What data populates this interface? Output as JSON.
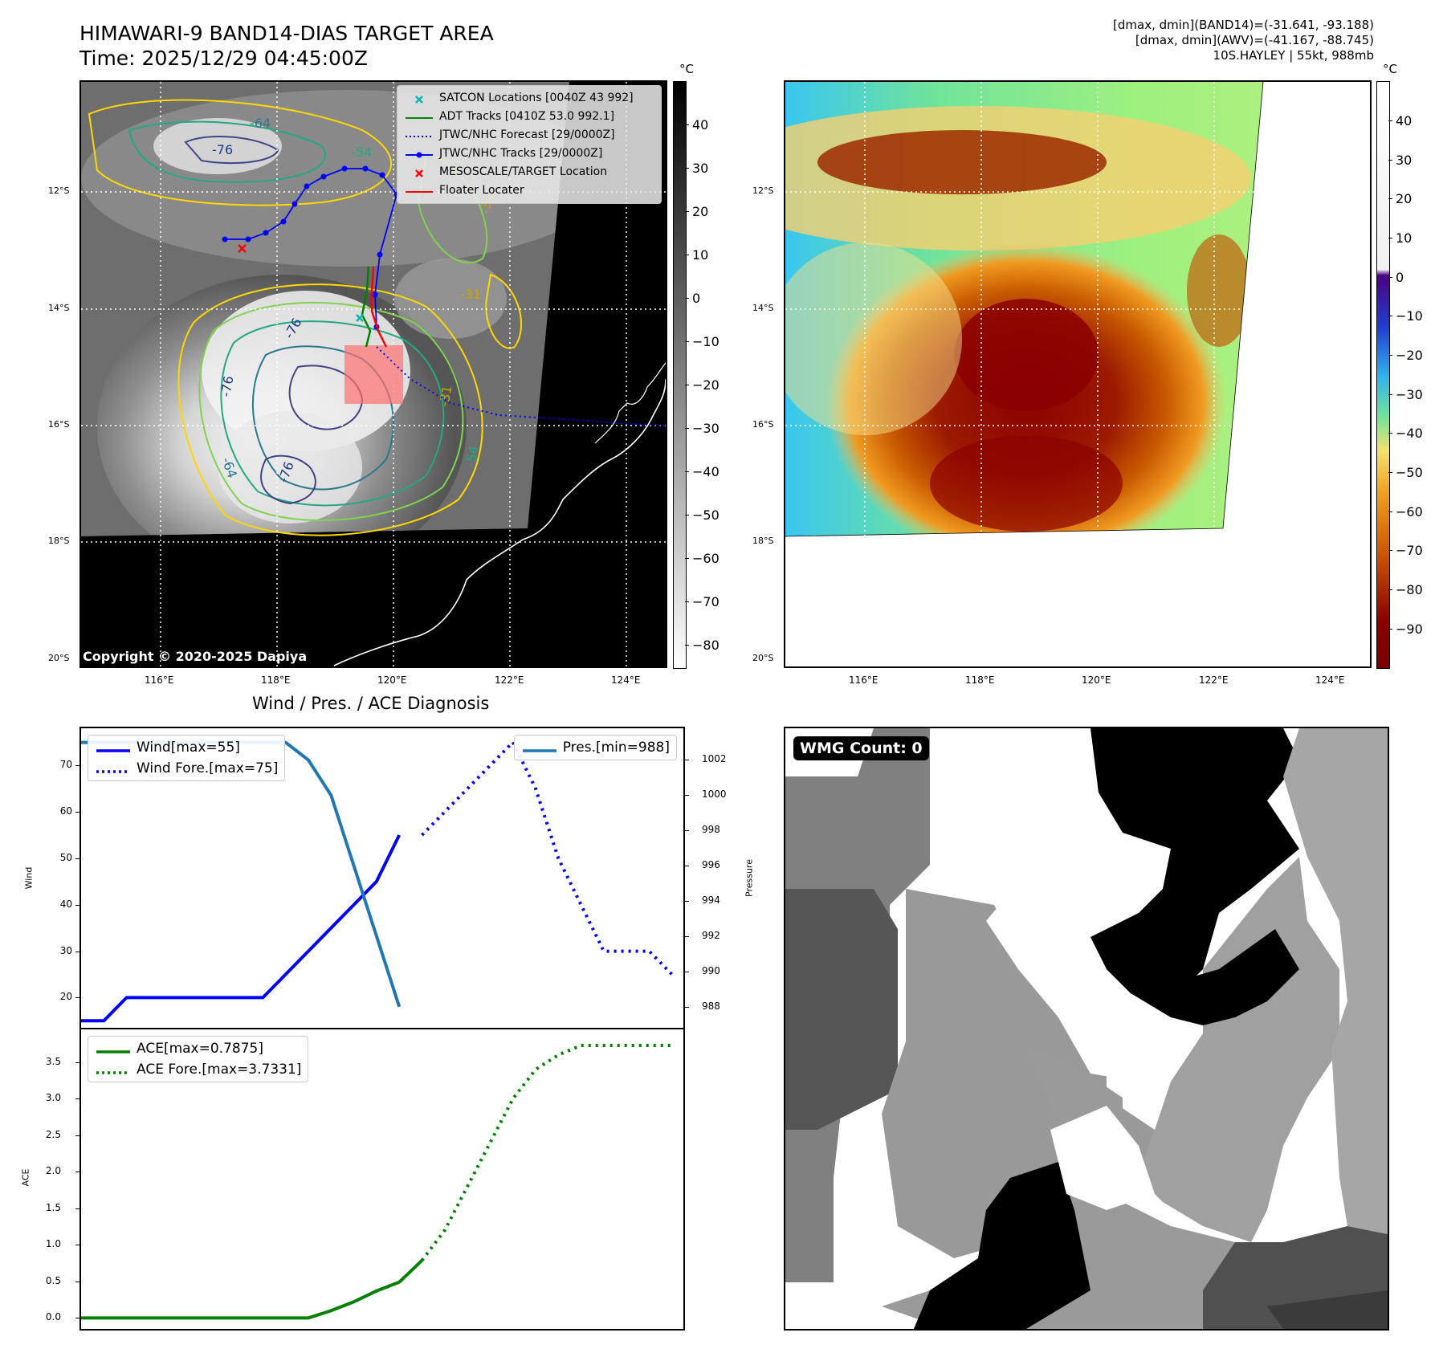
{
  "header": {
    "title_line1": "HIMAWARI-9 BAND14-DIAS TARGET AREA",
    "title_line2": "Time: 2025/12/29 04:45:00Z",
    "stats_line1": "[dmax, dmin](BAND14)=(-31.641, -93.188)",
    "stats_line2": "[dmax, dmin](AWV)=(-41.167, -88.745)",
    "stats_line3": "10S.HAYLEY | 55kt, 988mb"
  },
  "map": {
    "lat_labels": [
      "12°S",
      "14°S",
      "16°S",
      "18°S",
      "20°S"
    ],
    "lon_labels": [
      "116°E",
      "118°E",
      "120°E",
      "122°E",
      "124°E"
    ],
    "copyright": "Copyright © 2020-2025 Dapiya",
    "contour_labels": [
      "-76",
      "-76",
      "-76",
      "-76",
      "-64",
      "-64",
      "-54",
      "-54",
      "-31",
      "-31",
      "-31"
    ],
    "legend": [
      {
        "label": "SATCON Locations [0040Z 43 992]",
        "color": "#00b5b5",
        "symbol": "x"
      },
      {
        "label": "ADT Tracks [0410Z 53.0 992.1]",
        "color": "#008000",
        "symbol": "line"
      },
      {
        "label": "JTWC/NHC Forecast [29/0000Z]",
        "color": "#0000ff",
        "symbol": "dotted"
      },
      {
        "label": "JTWC/NHC Tracks [29/0000Z]",
        "color": "#0000ff",
        "symbol": "line-dot"
      },
      {
        "label": "MESOSCALE/TARGET Location",
        "color": "#ff0000",
        "symbol": "x"
      },
      {
        "label": "Floater Locater",
        "color": "#ff0000",
        "symbol": "line"
      }
    ]
  },
  "colorbar_gray": {
    "unit": "°C",
    "ticks": [
      "40",
      "30",
      "20",
      "10",
      "0",
      "−10",
      "−20",
      "−30",
      "−40",
      "−50",
      "−60",
      "−70",
      "−80"
    ]
  },
  "colorbar_color": {
    "unit": "°C",
    "ticks": [
      "40",
      "30",
      "20",
      "10",
      "0",
      "−10",
      "−20",
      "−30",
      "−40",
      "−50",
      "−60",
      "−70",
      "−80",
      "−90"
    ]
  },
  "chart_data": [
    {
      "type": "line",
      "title": "Wind / Pres. / ACE Diagnosis",
      "ylabel": "Wind",
      "y2label": "Pressure",
      "ylim": [
        13.5,
        78
      ],
      "y2lim": [
        986.8,
        1003.8
      ],
      "xlim": [
        0,
        26.5
      ],
      "yticks": [
        "20",
        "30",
        "40",
        "50",
        "60",
        "70"
      ],
      "y2ticks": [
        "988",
        "990",
        "992",
        "994",
        "996",
        "998",
        "1000",
        "1002"
      ],
      "series": [
        {
          "name": "Wind[max=55]",
          "color": "#0000ff",
          "style": "solid",
          "x": [
            0,
            1,
            2,
            3,
            4,
            5,
            6,
            7,
            8,
            9,
            10,
            11,
            12,
            13,
            14,
            15
          ],
          "y": [
            15,
            15,
            20,
            20,
            20,
            20,
            20,
            20,
            20,
            25,
            30,
            35,
            40,
            45,
            55,
            null
          ]
        },
        {
          "name": "Wind Fore.[max=75]",
          "color": "#0000ff",
          "style": "dotted",
          "x": [
            15,
            16,
            17,
            18,
            19,
            20,
            21,
            22,
            23,
            24,
            25,
            26
          ],
          "y": [
            55,
            60,
            65,
            70,
            75,
            65,
            50,
            40,
            30,
            30,
            30,
            25
          ]
        },
        {
          "name": "Pres.[min=988]",
          "color": "#1f77b4",
          "style": "solid",
          "axis": "right",
          "x": [
            0,
            1,
            2,
            3,
            4,
            5,
            6,
            7,
            8,
            9,
            10,
            11,
            12,
            13,
            14,
            15
          ],
          "y": [
            1003,
            1003,
            1003,
            1003,
            1003,
            1003,
            1003,
            1003,
            1003,
            1003,
            1002,
            1000,
            996,
            992,
            988,
            null
          ]
        }
      ]
    },
    {
      "type": "line",
      "ylabel": "ACE",
      "ylim": [
        -0.15,
        3.95
      ],
      "xlim": [
        0,
        26.5
      ],
      "yticks": [
        "0.0",
        "0.5",
        "1.0",
        "1.5",
        "2.0",
        "2.5",
        "3.0",
        "3.5"
      ],
      "series": [
        {
          "name": "ACE[max=0.7875]",
          "color": "#008000",
          "style": "solid",
          "x": [
            0,
            1,
            2,
            3,
            4,
            5,
            6,
            7,
            8,
            9,
            10,
            11,
            12,
            13,
            14,
            15
          ],
          "y": [
            0,
            0,
            0,
            0,
            0,
            0,
            0,
            0,
            0,
            0,
            0,
            0.1,
            0.22,
            0.37,
            0.49,
            0.7875
          ]
        },
        {
          "name": "ACE Fore.[max=3.7331]",
          "color": "#008000",
          "style": "dotted",
          "x": [
            15,
            16,
            17,
            18,
            19,
            20,
            21,
            22,
            23,
            24,
            25,
            26
          ],
          "y": [
            0.7875,
            1.2,
            1.8,
            2.4,
            3.0,
            3.4,
            3.6,
            3.73,
            3.73,
            3.73,
            3.73,
            3.73
          ]
        }
      ]
    }
  ],
  "wmg": {
    "badge": "WMG Count: 0"
  }
}
